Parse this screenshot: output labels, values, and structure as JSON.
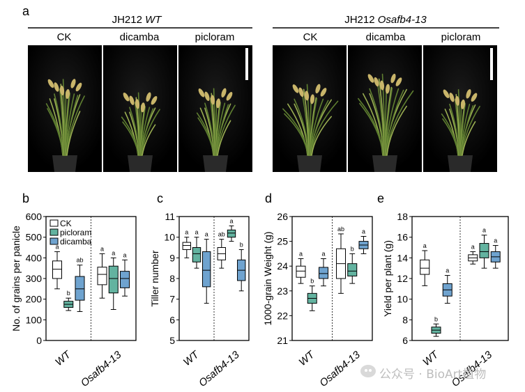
{
  "panel_a": {
    "label": "a",
    "groups": [
      {
        "prefix": "JH212 ",
        "genotype": "WT",
        "treatments": [
          "CK",
          "dicamba",
          "picloram"
        ]
      },
      {
        "prefix": "JH212 ",
        "genotype": "Osafb4-13",
        "treatments": [
          "CK",
          "dicamba",
          "picloram"
        ]
      }
    ]
  },
  "watermark": "公众号 · BioArt植物",
  "colors": {
    "CK": "#ffffff",
    "picloram": "#63b3a0",
    "dicamba": "#6fa3cf"
  },
  "chart_data": [
    {
      "panel": "b",
      "type": "boxplot",
      "ylabel": "No. of grains per panicle",
      "ylim": [
        0,
        600
      ],
      "yticks": [
        0,
        100,
        200,
        300,
        400,
        500,
        600
      ],
      "categories": [
        "WT",
        "Osafb4-13"
      ],
      "legend": [
        "CK",
        "picloram",
        "dicamba"
      ],
      "series": [
        {
          "name": "CK",
          "boxes": [
            {
              "min": 250,
              "q1": 300,
              "median": 345,
              "q3": 385,
              "max": 430,
              "letter": "a"
            },
            {
              "min": 205,
              "q1": 270,
              "median": 320,
              "q3": 355,
              "max": 420,
              "letter": "a"
            }
          ]
        },
        {
          "name": "picloram",
          "boxes": [
            {
              "min": 145,
              "q1": 160,
              "median": 175,
              "q3": 190,
              "max": 205,
              "letter": "b"
            },
            {
              "min": 150,
              "q1": 230,
              "median": 300,
              "q3": 360,
              "max": 400,
              "letter": "a"
            }
          ]
        },
        {
          "name": "dicamba",
          "boxes": [
            {
              "min": 140,
              "q1": 195,
              "median": 250,
              "q3": 310,
              "max": 365,
              "letter": "ab"
            },
            {
              "min": 215,
              "q1": 255,
              "median": 300,
              "q3": 335,
              "max": 390,
              "letter": "a"
            }
          ]
        }
      ]
    },
    {
      "panel": "c",
      "type": "boxplot",
      "ylabel": "Tiller number",
      "ylim": [
        5,
        11
      ],
      "yticks": [
        5,
        6,
        7,
        8,
        9,
        10,
        11
      ],
      "categories": [
        "WT",
        "Osafb4-13"
      ],
      "series": [
        {
          "name": "CK",
          "boxes": [
            {
              "min": 9.0,
              "q1": 9.4,
              "median": 9.6,
              "q3": 9.75,
              "max": 10.0,
              "letter": "a"
            },
            {
              "min": 8.5,
              "q1": 8.9,
              "median": 9.2,
              "q3": 9.5,
              "max": 9.9,
              "letter": "ab"
            }
          ]
        },
        {
          "name": "picloram",
          "boxes": [
            {
              "min": 8.5,
              "q1": 8.8,
              "median": 9.2,
              "q3": 9.5,
              "max": 10.0,
              "letter": "a"
            },
            {
              "min": 9.8,
              "q1": 10.0,
              "median": 10.2,
              "q3": 10.35,
              "max": 10.55,
              "letter": "a"
            }
          ]
        },
        {
          "name": "dicamba",
          "boxes": [
            {
              "min": 6.8,
              "q1": 7.6,
              "median": 8.4,
              "q3": 9.3,
              "max": 9.9,
              "letter": "a"
            },
            {
              "min": 7.4,
              "q1": 7.9,
              "median": 8.4,
              "q3": 8.9,
              "max": 9.4,
              "letter": "b"
            }
          ]
        }
      ]
    },
    {
      "panel": "d",
      "type": "boxplot",
      "ylabel": "1000-grain Weight (g)",
      "ylim": [
        21,
        26
      ],
      "yticks": [
        21,
        22,
        23,
        24,
        25,
        26
      ],
      "categories": [
        "WT",
        "Osafb4-13"
      ],
      "series": [
        {
          "name": "CK",
          "boxes": [
            {
              "min": 23.3,
              "q1": 23.55,
              "median": 23.8,
              "q3": 24.0,
              "max": 24.3,
              "letter": "a"
            },
            {
              "min": 22.9,
              "q1": 23.5,
              "median": 24.1,
              "q3": 24.7,
              "max": 25.3,
              "letter": "ab"
            }
          ]
        },
        {
          "name": "picloram",
          "boxes": [
            {
              "min": 22.2,
              "q1": 22.5,
              "median": 22.7,
              "q3": 22.9,
              "max": 23.2,
              "letter": "b"
            },
            {
              "min": 23.3,
              "q1": 23.6,
              "median": 23.8,
              "q3": 24.1,
              "max": 24.5,
              "letter": "b"
            }
          ]
        },
        {
          "name": "dicamba",
          "boxes": [
            {
              "min": 23.2,
              "q1": 23.5,
              "median": 23.7,
              "q3": 23.95,
              "max": 24.3,
              "letter": "a"
            },
            {
              "min": 24.5,
              "q1": 24.7,
              "median": 24.85,
              "q3": 25.0,
              "max": 25.2,
              "letter": "a"
            }
          ]
        }
      ]
    },
    {
      "panel": "e",
      "type": "boxplot",
      "ylabel": "Yield per plant (g)",
      "ylim": [
        6,
        18
      ],
      "yticks": [
        6,
        8,
        10,
        12,
        14,
        16,
        18
      ],
      "categories": [
        "WT",
        "Osafb4-13"
      ],
      "series": [
        {
          "name": "CK",
          "boxes": [
            {
              "min": 11.3,
              "q1": 12.4,
              "median": 13.0,
              "q3": 13.8,
              "max": 14.7,
              "letter": "a"
            },
            {
              "min": 13.4,
              "q1": 13.7,
              "median": 14.0,
              "q3": 14.3,
              "max": 14.6,
              "letter": "a"
            }
          ]
        },
        {
          "name": "picloram",
          "boxes": [
            {
              "min": 6.4,
              "q1": 6.7,
              "median": 7.0,
              "q3": 7.3,
              "max": 7.6,
              "letter": "b"
            },
            {
              "min": 13.0,
              "q1": 14.0,
              "median": 14.6,
              "q3": 15.4,
              "max": 16.2,
              "letter": "a"
            }
          ]
        },
        {
          "name": "dicamba",
          "boxes": [
            {
              "min": 9.6,
              "q1": 10.3,
              "median": 10.9,
              "q3": 11.5,
              "max": 12.3,
              "letter": "a"
            },
            {
              "min": 13.0,
              "q1": 13.6,
              "median": 14.1,
              "q3": 14.6,
              "max": 15.2,
              "letter": "a"
            }
          ]
        }
      ]
    }
  ]
}
